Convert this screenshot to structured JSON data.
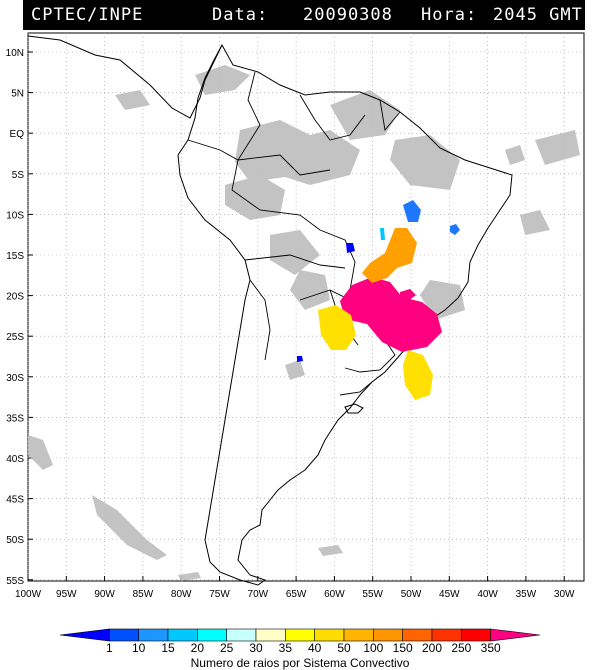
{
  "header": {
    "source": "CPTEC/INPE",
    "date_label": "Data:",
    "date": "20090308",
    "hour_label": "Hora:",
    "hour": "2045 GMT"
  },
  "axes": {
    "lat_labels": [
      "10N",
      "5N",
      "EQ",
      "5S",
      "10S",
      "15S",
      "20S",
      "25S",
      "30S",
      "35S",
      "40S",
      "45S",
      "50S",
      "55S"
    ],
    "lon_labels": [
      "100W",
      "95W",
      "90W",
      "85W",
      "80W",
      "75W",
      "70W",
      "65W",
      "60W",
      "55W",
      "50W",
      "45W",
      "40W",
      "35W",
      "30W"
    ]
  },
  "legend": {
    "ticks": [
      "1",
      "10",
      "15",
      "20",
      "25",
      "30",
      "35",
      "40",
      "50",
      "100",
      "150",
      "200",
      "250",
      "350"
    ],
    "title": "Numero de raios por Sistema Convectivo",
    "colors": [
      "#0000ff",
      "#0050ff",
      "#1e96ff",
      "#00c8ff",
      "#00ffff",
      "#c8ffff",
      "#ffffc8",
      "#ffff00",
      "#ffdc00",
      "#ffb400",
      "#ff9600",
      "#ff6400",
      "#ff3200",
      "#ff0000",
      "#ff0080"
    ]
  },
  "systems": [
    {
      "color": "#ff0080"
    },
    {
      "color": "#ffdc00"
    },
    {
      "color": "#ffa000"
    },
    {
      "color": "#1e78ff"
    },
    {
      "color": "#0000ff"
    }
  ]
}
